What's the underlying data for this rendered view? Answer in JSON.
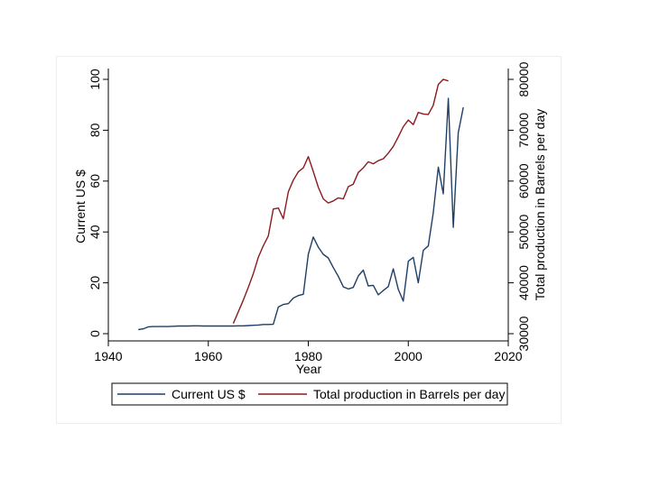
{
  "chart_data": {
    "type": "line",
    "title": "",
    "xlabel": "Year",
    "ylabel_left": "Current US $",
    "ylabel_right": "Total production in Barrels per day",
    "xlim": [
      1940,
      2020
    ],
    "ylim_left": [
      0,
      100
    ],
    "ylim_right": [
      30000,
      80000
    ],
    "xticks": [
      1940,
      1960,
      1980,
      2000,
      2020
    ],
    "yticks_left": [
      0,
      20,
      40,
      60,
      80,
      100
    ],
    "yticks_right": [
      30000,
      40000,
      50000,
      60000,
      70000,
      80000
    ],
    "grid": false,
    "legend_position": "bottom",
    "colors": {
      "price": "#1f3f66",
      "production": "#8b1a1f"
    },
    "series": [
      {
        "name": "Current US $",
        "axis": "left",
        "x": [
          1946,
          1947,
          1948,
          1949,
          1950,
          1951,
          1952,
          1953,
          1954,
          1955,
          1956,
          1957,
          1958,
          1959,
          1960,
          1961,
          1962,
          1963,
          1964,
          1965,
          1966,
          1967,
          1968,
          1969,
          1970,
          1971,
          1972,
          1973,
          1974,
          1975,
          1976,
          1977,
          1978,
          1979,
          1980,
          1981,
          1982,
          1983,
          1984,
          1985,
          1986,
          1987,
          1988,
          1989,
          1990,
          1991,
          1992,
          1993,
          1994,
          1995,
          1996,
          1997,
          1998,
          1999,
          2000,
          2001,
          2002,
          2003,
          2004,
          2005,
          2006,
          2007,
          2008,
          2009,
          2010,
          2011
        ],
        "values": [
          1.6,
          1.9,
          2.7,
          2.8,
          2.8,
          2.8,
          2.8,
          2.9,
          3.0,
          3.0,
          3.0,
          3.1,
          3.1,
          3.0,
          3.0,
          3.0,
          3.0,
          3.0,
          3.0,
          3.0,
          3.1,
          3.1,
          3.2,
          3.3,
          3.4,
          3.6,
          3.6,
          3.7,
          10.5,
          11.5,
          11.8,
          14.0,
          15.0,
          15.5,
          31.2,
          38.0,
          34.0,
          31.2,
          29.8,
          26.0,
          22.6,
          18.4,
          17.6,
          18.2,
          22.7,
          25.0,
          18.8,
          19.0,
          15.3,
          17.0,
          18.5,
          25.5,
          17.4,
          12.8,
          28.5,
          30.0,
          20.0,
          32.8,
          34.5,
          47.5,
          65.5,
          55.0,
          92.5,
          41.8,
          79.0,
          89.0
        ]
      },
      {
        "name": "Total production in Barrels per day",
        "axis": "right",
        "x": [
          1965,
          1966,
          1967,
          1968,
          1969,
          1970,
          1971,
          1972,
          1973,
          1974,
          1975,
          1976,
          1977,
          1978,
          1979,
          1980,
          1981,
          1982,
          1983,
          1984,
          1985,
          1986,
          1987,
          1988,
          1989,
          1990,
          1991,
          1992,
          1993,
          1994,
          1995,
          1996,
          1997,
          1998,
          1999,
          2000,
          2001,
          2002,
          2003,
          2004,
          2005,
          2006,
          2007,
          2008
        ],
        "values": [
          32000,
          34300,
          36600,
          39100,
          41800,
          45000,
          47300,
          49200,
          54500,
          54700,
          52600,
          57900,
          60200,
          61800,
          62600,
          64800,
          61900,
          58800,
          56500,
          55700,
          56100,
          56700,
          56500,
          58900,
          59400,
          61700,
          62600,
          63800,
          63400,
          64000,
          64400,
          65500,
          66800,
          68700,
          70700,
          72000,
          71100,
          73500,
          73200,
          73100,
          74900,
          79000,
          80000,
          79700
        ]
      }
    ],
    "legend": [
      "Current US $",
      "Total production in Barrels per day"
    ]
  }
}
